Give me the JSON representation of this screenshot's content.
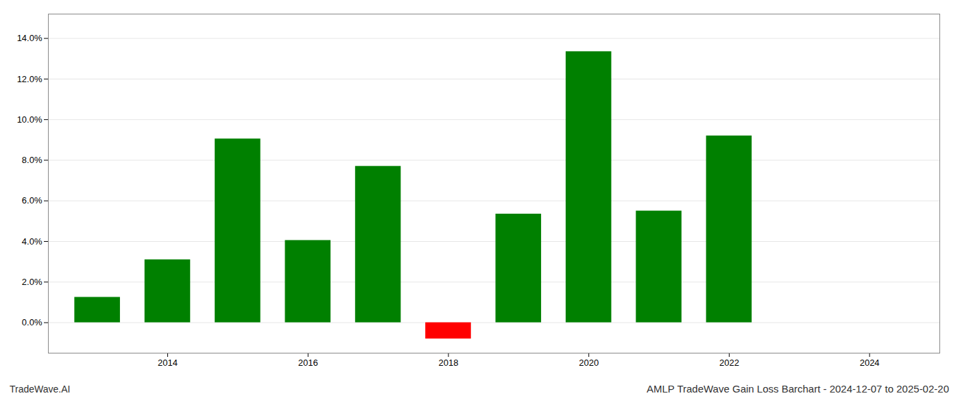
{
  "chart_data": {
    "type": "bar",
    "title": "AMLP TradeWave Gain Loss Barchart - 2024-12-07 to 2025-02-20",
    "annotations": [
      "TradeWave.AI"
    ],
    "x": [
      2013,
      2014,
      2015,
      2016,
      2017,
      2018,
      2019,
      2020,
      2021,
      2022,
      2023
    ],
    "values": [
      1.25,
      3.1,
      9.05,
      4.05,
      7.7,
      -0.8,
      5.35,
      13.35,
      5.5,
      9.2,
      null
    ],
    "colors": [
      "#008000",
      "#008000",
      "#008000",
      "#008000",
      "#008000",
      "#ff0000",
      "#008000",
      "#008000",
      "#008000",
      "#008000",
      null
    ],
    "xlim": [
      2012.3,
      2025.0
    ],
    "xticks": [
      2014,
      2016,
      2018,
      2020,
      2022,
      2024
    ],
    "ylim": [
      -1.5,
      15.2
    ],
    "yticks": [
      {
        "value": 0.0,
        "label": "0.0%"
      },
      {
        "value": 2.0,
        "label": "2.0%"
      },
      {
        "value": 4.0,
        "label": "4.0%"
      },
      {
        "value": 6.0,
        "label": "6.0%"
      },
      {
        "value": 8.0,
        "label": "8.0%"
      },
      {
        "value": 10.0,
        "label": "10.0%"
      },
      {
        "value": 12.0,
        "label": "12.0%"
      },
      {
        "value": 14.0,
        "label": "14.0%"
      }
    ],
    "grid": true
  }
}
